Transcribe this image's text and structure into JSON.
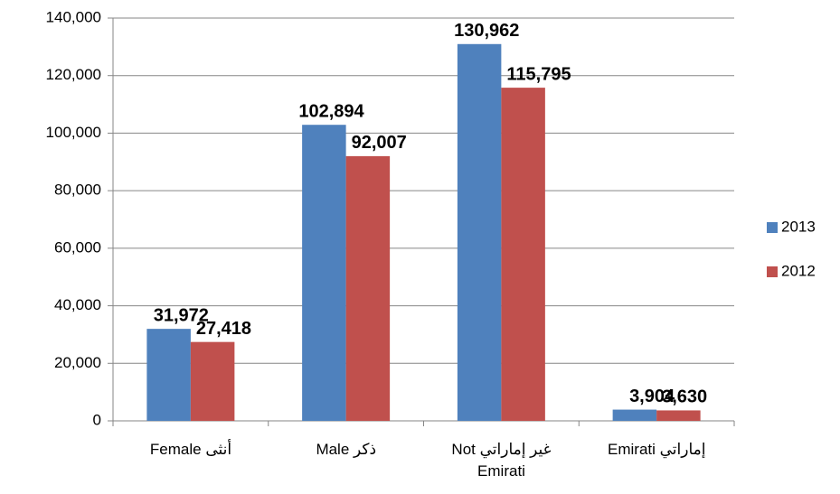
{
  "chart_data": {
    "type": "bar",
    "categories": [
      "Female أنثى",
      "Male ذكر",
      "Not غير إماراتي\nEmirati",
      "Emirati إماراتي"
    ],
    "series": [
      {
        "name": "2013",
        "color": "#4f81bd",
        "values": [
          31972,
          102894,
          130962,
          3904
        ],
        "value_labels": [
          "31,972",
          "102,894",
          "130,962",
          "3,904"
        ]
      },
      {
        "name": "2012",
        "color": "#c0504d",
        "values": [
          27418,
          92007,
          115795,
          3630
        ],
        "value_labels": [
          "27,418",
          "92,007",
          "115,795",
          "3,630"
        ]
      }
    ],
    "ylim": [
      0,
      140000
    ],
    "yticks": [
      0,
      {
        "value": 20000,
        "label": "20,000"
      },
      {
        "value": 40000,
        "label": "40,000"
      },
      {
        "value": 60000,
        "label": "60,000"
      },
      {
        "value": 80000,
        "label": "80,000"
      },
      {
        "value": 100000,
        "label": "100,000"
      },
      {
        "value": 120000,
        "label": "120,000"
      },
      {
        "value": 140000,
        "label": "140,000"
      }
    ],
    "grid": true,
    "legend": "right"
  }
}
